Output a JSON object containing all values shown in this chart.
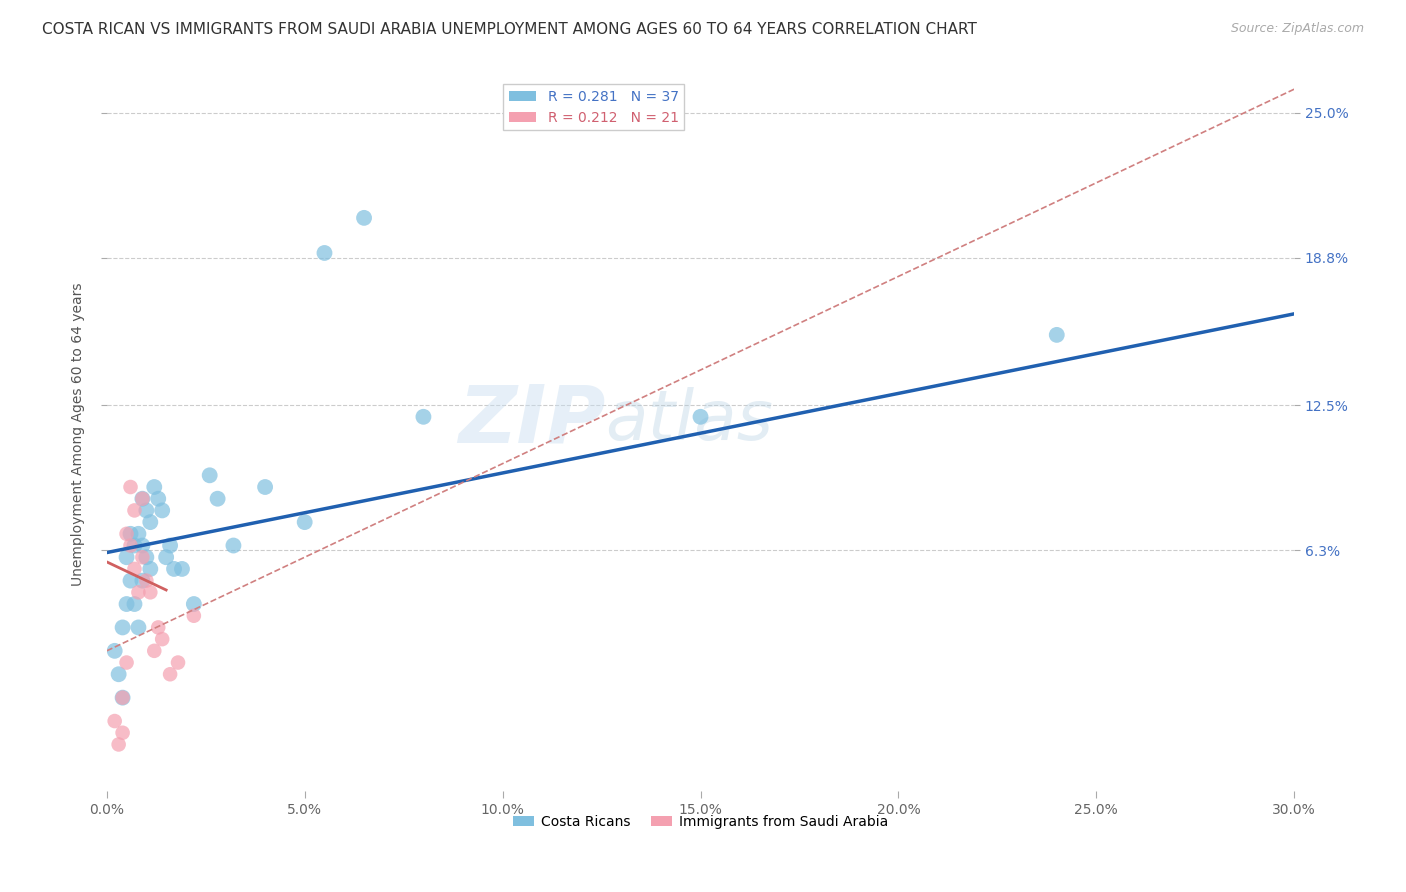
{
  "title": "COSTA RICAN VS IMMIGRANTS FROM SAUDI ARABIA UNEMPLOYMENT AMONG AGES 60 TO 64 YEARS CORRELATION CHART",
  "source": "Source: ZipAtlas.com",
  "ylabel": "Unemployment Among Ages 60 to 64 years",
  "xlim": [
    0.0,
    0.3
  ],
  "ylim": [
    -0.04,
    0.265
  ],
  "yticks": [
    0.063,
    0.125,
    0.188,
    0.25
  ],
  "right_ytick_labels": [
    "6.3%",
    "12.5%",
    "18.8%",
    "25.0%"
  ],
  "background_color": "#ffffff",
  "grid_color": "#cccccc",
  "legend1_label": "R = 0.281   N = 37",
  "legend2_label": "R = 0.212   N = 21",
  "costa_rican_color": "#7fbfdf",
  "saudi_color": "#f4a0b0",
  "trend_blue": "#2060b0",
  "trend_pink_dash": "#d08080",
  "trend_pink_solid": "#d06060",
  "costa_rican_x": [
    0.002,
    0.003,
    0.004,
    0.004,
    0.005,
    0.005,
    0.006,
    0.006,
    0.007,
    0.007,
    0.008,
    0.008,
    0.009,
    0.009,
    0.009,
    0.01,
    0.01,
    0.011,
    0.011,
    0.012,
    0.013,
    0.014,
    0.015,
    0.016,
    0.017,
    0.019,
    0.022,
    0.026,
    0.028,
    0.032,
    0.04,
    0.05,
    0.055,
    0.065,
    0.08,
    0.15,
    0.24
  ],
  "costa_rican_y": [
    0.02,
    0.01,
    0.0,
    0.03,
    0.04,
    0.06,
    0.05,
    0.07,
    0.04,
    0.065,
    0.03,
    0.07,
    0.05,
    0.085,
    0.065,
    0.08,
    0.06,
    0.055,
    0.075,
    0.09,
    0.085,
    0.08,
    0.06,
    0.065,
    0.055,
    0.055,
    0.04,
    0.095,
    0.085,
    0.065,
    0.09,
    0.075,
    0.19,
    0.205,
    0.12,
    0.12,
    0.155
  ],
  "saudi_x": [
    0.002,
    0.003,
    0.004,
    0.004,
    0.005,
    0.005,
    0.006,
    0.006,
    0.007,
    0.007,
    0.008,
    0.009,
    0.009,
    0.01,
    0.011,
    0.012,
    0.013,
    0.014,
    0.016,
    0.018,
    0.022
  ],
  "saudi_y": [
    -0.01,
    -0.02,
    0.0,
    -0.015,
    0.015,
    0.07,
    0.065,
    0.09,
    0.055,
    0.08,
    0.045,
    0.06,
    0.085,
    0.05,
    0.045,
    0.02,
    0.03,
    0.025,
    0.01,
    0.015,
    0.035
  ],
  "title_fontsize": 11,
  "source_fontsize": 9,
  "axis_label_fontsize": 10,
  "tick_fontsize": 10,
  "legend_fontsize": 10,
  "right_tick_color": "#4472c4",
  "bottom_tick_color": "#666666",
  "blue_trend_intercept": 0.062,
  "blue_trend_slope": 0.34,
  "pink_dash_intercept": 0.02,
  "pink_dash_slope": 0.8,
  "pink_solid_intercept": 0.058,
  "pink_solid_slope": -0.8
}
